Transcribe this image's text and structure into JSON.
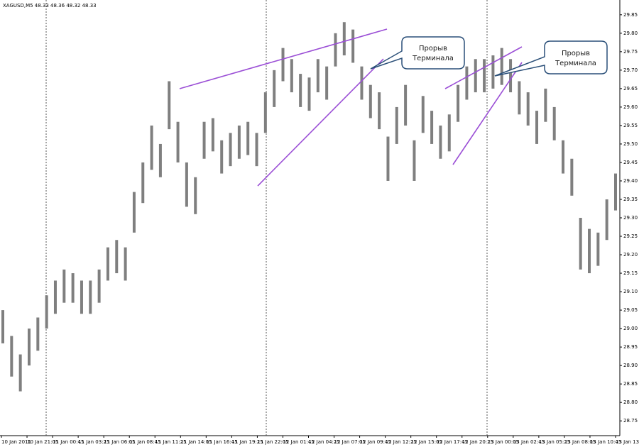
{
  "chart_data": {
    "type": "range",
    "title": "XAGUSD,M5  48.33 48.36 48.32 48.33",
    "color": "#7f7f7f",
    "categories": [
      "10 Jan 2011",
      "10 Jan 21:05",
      "11 Jan 00:45",
      "11 Jan 03:25",
      "11 Jan 06:05",
      "11 Jan 08:45",
      "11 Jan 11:25",
      "11 Jan 14:05",
      "11 Jan 16:45",
      "11 Jan 19:25",
      "11 Jan 22:05",
      "12 Jan 01:45",
      "12 Jan 04:25",
      "12 Jan 07:05",
      "12 Jan 09:45",
      "12 Jan 12:25",
      "12 Jan 15:05",
      "12 Jan 17:45",
      "12 Jan 20:25",
      "13 Jan 00:05",
      "13 Jan 02:45",
      "13 Jan 05:25",
      "13 Jan 08:05",
      "13 Jan 10:45",
      "13 Jan 13:25"
    ],
    "high": [
      29.05,
      28.98,
      28.93,
      29.0,
      29.03,
      29.09,
      29.13,
      29.16,
      29.15,
      29.13,
      29.13,
      29.16,
      29.22,
      29.24,
      29.22,
      29.37,
      29.45,
      29.55,
      29.5,
      29.67,
      29.56,
      29.45,
      29.41,
      29.56,
      29.57,
      29.51,
      29.53,
      29.55,
      29.56,
      29.53,
      29.64,
      29.7,
      29.76,
      29.73,
      29.69,
      29.68,
      29.73,
      29.71,
      29.8,
      29.83,
      29.81,
      29.71,
      29.66,
      29.64,
      29.52,
      29.6,
      29.66,
      29.51,
      29.63,
      29.59,
      29.55,
      29.58,
      29.66,
      29.71,
      29.73,
      29.73,
      29.74,
      29.76,
      29.73,
      29.67,
      29.64,
      29.59,
      29.65,
      29.6,
      29.51,
      29.46,
      29.3,
      29.27,
      29.26,
      29.35,
      29.42
    ],
    "low": [
      28.96,
      28.87,
      28.83,
      28.9,
      28.94,
      29.0,
      29.04,
      29.07,
      29.07,
      29.04,
      29.04,
      29.07,
      29.13,
      29.15,
      29.13,
      29.26,
      29.34,
      29.43,
      29.41,
      29.54,
      29.45,
      29.33,
      29.31,
      29.46,
      29.48,
      29.42,
      29.44,
      29.46,
      29.47,
      29.44,
      29.53,
      29.6,
      29.67,
      29.64,
      29.6,
      29.59,
      29.64,
      29.62,
      29.71,
      29.74,
      29.72,
      29.62,
      29.57,
      29.54,
      29.4,
      29.5,
      29.55,
      29.4,
      29.53,
      29.5,
      29.46,
      29.48,
      29.56,
      29.62,
      29.64,
      29.64,
      29.65,
      29.66,
      29.64,
      29.58,
      29.55,
      29.5,
      29.56,
      29.51,
      29.42,
      29.36,
      29.16,
      29.15,
      29.17,
      29.24,
      29.32
    ],
    "ylim": [
      28.71,
      29.89
    ],
    "yticks": [
      29.85,
      {
        "value": 29.8,
        "label": "29.80"
      },
      29.75,
      {
        "value": 29.7,
        "label": "29.70"
      },
      29.65,
      {
        "value": 29.6,
        "label": "29.60"
      },
      29.55,
      {
        "value": 29.5,
        "label": "29.50"
      },
      29.45,
      {
        "value": 29.4,
        "label": "29.40"
      },
      29.35,
      {
        "value": 29.3,
        "label": "29.30"
      },
      29.25,
      {
        "value": 29.2,
        "label": "29.20"
      },
      29.15,
      {
        "value": 29.1,
        "label": "29.10"
      },
      29.05,
      {
        "value": 29,
        "label": "29.00"
      },
      28.95,
      {
        "value": 28.9,
        "label": "28.90"
      },
      28.85,
      {
        "value": 28.8,
        "label": "28.80"
      },
      28.75
    ],
    "annotations": [
      [
        "Прорыв",
        "Терминала"
      ],
      [
        "Прорыв",
        "Терминала"
      ]
    ]
  }
}
